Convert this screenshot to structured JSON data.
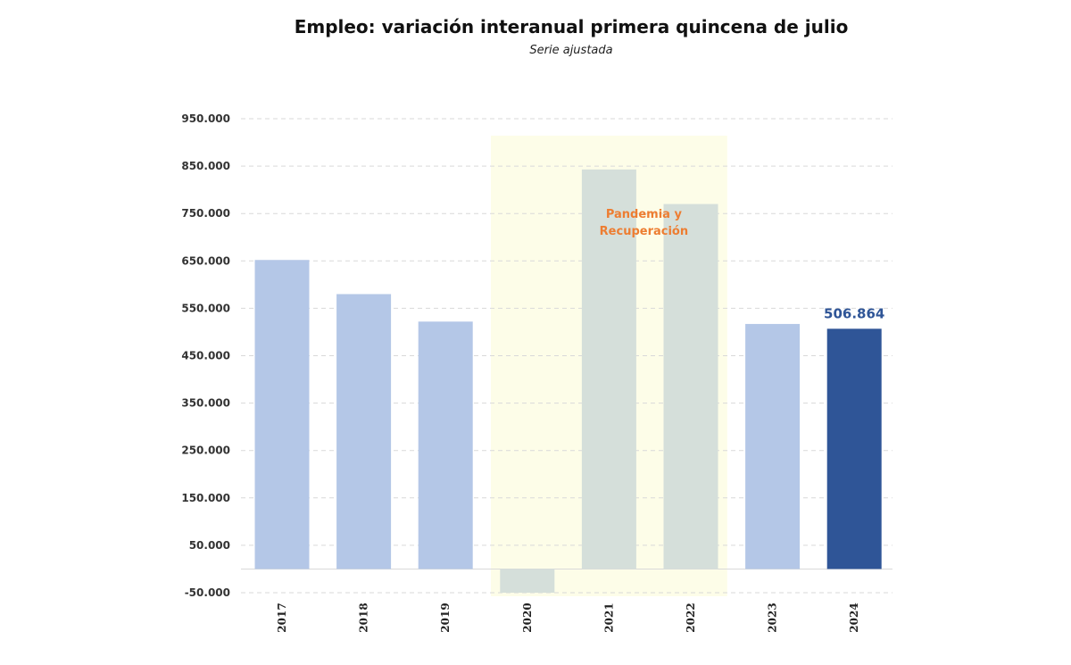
{
  "chart_data": {
    "type": "bar",
    "title": "Empleo: variación interanual primera quincena de julio",
    "subtitle": "Serie ajustada",
    "xlabel": "",
    "ylabel": "",
    "categories": [
      "2017",
      "2018",
      "2019",
      "2020",
      "2021",
      "2022",
      "2023",
      "2024"
    ],
    "values": [
      652000,
      580000,
      522000,
      -50000,
      843000,
      770000,
      517000,
      506864
    ],
    "ylim": [
      -50000,
      950000
    ],
    "yticks": [
      950000,
      850000,
      750000,
      650000,
      550000,
      450000,
      350000,
      250000,
      150000,
      50000,
      -50000
    ],
    "ytick_labels": [
      "950.000",
      "850.000",
      "750.000",
      "650.000",
      "550.000",
      "450.000",
      "350.000",
      "250.000",
      "150.000",
      "50.000",
      "-50.000"
    ],
    "grid": "horizontal dashed",
    "legend": "none",
    "highlight": {
      "category": "2024",
      "label": "506.864",
      "color": "#2F5597"
    },
    "shaded_region": {
      "from": "2020",
      "to": "2022",
      "label_line1": "Pandemia y",
      "label_line2": "Recuperación",
      "label_color": "#ED7D31",
      "fill_color": "#FDFDE8"
    },
    "colors": {
      "normal": "#B4C7E7",
      "pandemic": "#D5DFDA",
      "highlight": "#2F5597"
    }
  }
}
